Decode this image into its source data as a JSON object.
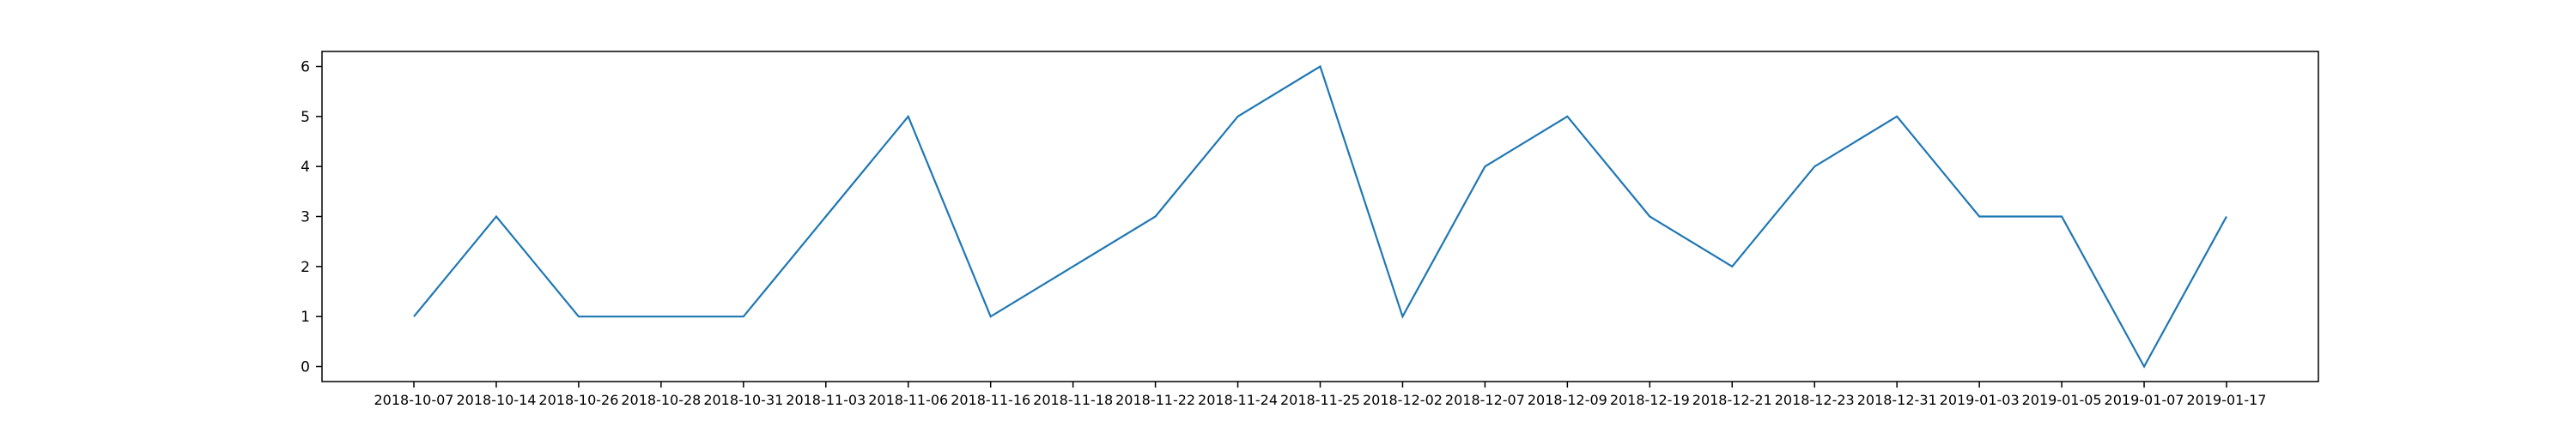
{
  "chart_data": {
    "type": "line",
    "title": "",
    "xlabel": "",
    "ylabel": "",
    "categories": [
      "2018-10-07",
      "2018-10-14",
      "2018-10-26",
      "2018-10-28",
      "2018-10-31",
      "2018-11-03",
      "2018-11-06",
      "2018-11-16",
      "2018-11-18",
      "2018-11-22",
      "2018-11-24",
      "2018-11-25",
      "2018-12-02",
      "2018-12-07",
      "2018-12-09",
      "2018-12-19",
      "2018-12-21",
      "2018-12-23",
      "2018-12-31",
      "2019-01-03",
      "2019-01-05",
      "2019-01-07",
      "2019-01-17"
    ],
    "series": [
      {
        "values": [
          1,
          3,
          1,
          1,
          1,
          3,
          5,
          1,
          2,
          3,
          5,
          6,
          1,
          4,
          5,
          3,
          2,
          4,
          5,
          3,
          3,
          0,
          3
        ],
        "color": "#1f77b4"
      }
    ],
    "yticks": [
      0,
      1,
      2,
      3,
      4,
      5,
      6
    ],
    "ylim": [
      -0.3,
      6.3
    ],
    "grid": false,
    "legend": "none"
  }
}
